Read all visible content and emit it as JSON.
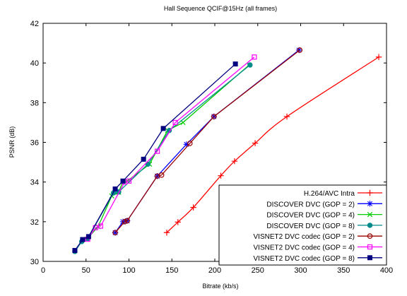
{
  "chart_data": {
    "type": "line",
    "title": "Hall Sequence QCIF@15Hz (all frames)",
    "xlabel": "Bitrate (kb/s)",
    "ylabel": "PSNR (dB)",
    "xlim": [
      0,
      400
    ],
    "ylim": [
      30,
      42
    ],
    "xticks": [
      0,
      50,
      100,
      150,
      200,
      250,
      300,
      350,
      400
    ],
    "yticks": [
      30,
      32,
      34,
      36,
      38,
      40,
      42
    ],
    "grid": false,
    "legend_position": "bottom-right",
    "series": [
      {
        "name": "H.264/AVC Intra",
        "color": "#ff0000",
        "marker": "plus",
        "smooth": true,
        "x": [
          144,
          157,
          175,
          207,
          223,
          247,
          284,
          391
        ],
        "y": [
          31.45,
          31.98,
          32.72,
          34.32,
          35.05,
          35.96,
          37.3,
          40.3
        ]
      },
      {
        "name": "DISCOVER DVC (GOP = 2)",
        "color": "#0000ff",
        "marker": "star",
        "x": [
          84,
          93,
          98,
          133,
          167,
          199,
          298
        ],
        "y": [
          31.45,
          32.0,
          32.05,
          34.3,
          35.9,
          37.3,
          40.65
        ]
      },
      {
        "name": "DISCOVER DVC (GOP = 4)",
        "color": "#00cc00",
        "marker": "x",
        "x": [
          51,
          64,
          80,
          88,
          93,
          98,
          124,
          145,
          163,
          240
        ],
        "y": [
          31.12,
          31.75,
          33.3,
          33.48,
          34.05,
          34.05,
          34.9,
          36.6,
          37.0,
          39.9
        ]
      },
      {
        "name": "DISCOVER DVC (GOP = 8)",
        "color": "#008b8b",
        "marker": "circle-filled",
        "x": [
          37,
          45,
          52,
          82,
          88,
          122,
          147,
          241
        ],
        "y": [
          30.5,
          31.0,
          31.15,
          33.45,
          33.5,
          34.9,
          36.6,
          39.9
        ]
      },
      {
        "name": "VISNET2 DVC codec (GOP = 2)",
        "color": "#990000",
        "marker": "circle-open",
        "x": [
          84,
          95,
          98,
          133,
          138,
          171,
          199,
          299
        ],
        "y": [
          31.45,
          32.0,
          32.05,
          34.3,
          34.35,
          35.95,
          37.3,
          40.65
        ]
      },
      {
        "name": "VISNET2 DVC codec (GOP = 4)",
        "color": "#ff00ff",
        "marker": "square-open",
        "x": [
          52,
          61,
          67,
          95,
          100,
          133,
          154,
          246
        ],
        "y": [
          31.12,
          31.7,
          31.78,
          34.0,
          34.05,
          35.55,
          37.0,
          40.3
        ]
      },
      {
        "name": "VISNET2 DVC codec (GOP = 8)",
        "color": "#000080",
        "marker": "square-filled",
        "x": [
          37,
          46,
          53,
          84,
          93,
          117,
          140,
          224
        ],
        "y": [
          30.55,
          31.1,
          31.25,
          33.65,
          34.05,
          35.15,
          36.7,
          39.95
        ]
      }
    ]
  }
}
